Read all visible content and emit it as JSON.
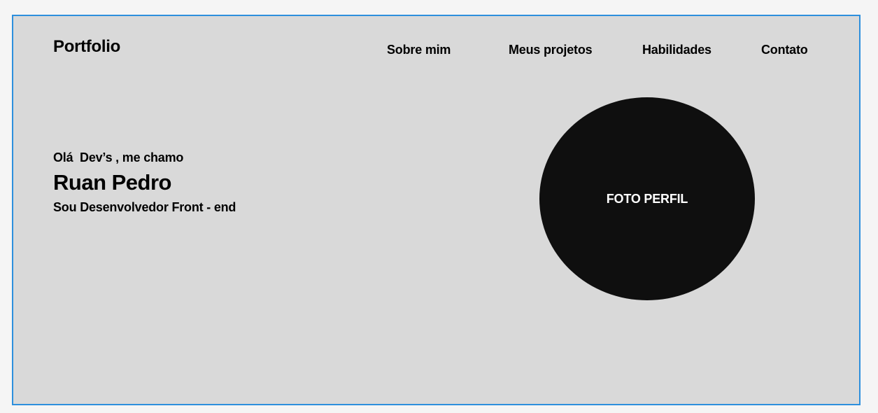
{
  "header": {
    "logo": "Portfolio",
    "nav": {
      "sobre": "Sobre mim",
      "projetos": "Meus projetos",
      "habilidades": "Habilidades",
      "contato": "Contato"
    }
  },
  "hero": {
    "greeting": "Olá  Dev’s , me chamo",
    "name": "Ruan Pedro",
    "role": "Sou Desenvolvedor Front - end",
    "photo_label": "FOTO PERFIL"
  },
  "colors": {
    "page_background": "#f5f5f5",
    "frame_background": "#d9d9d9",
    "frame_border": "#2d8fdd",
    "photo_fill": "#0f0f0f",
    "text": "#000000",
    "photo_text": "#ffffff"
  }
}
